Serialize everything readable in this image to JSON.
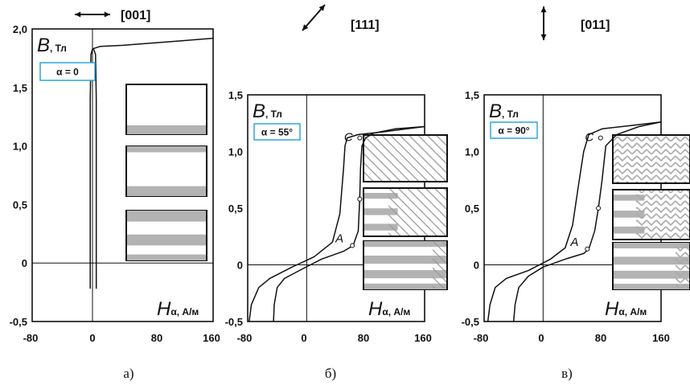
{
  "chart_data": [
    {
      "type": "line",
      "panel_label": "а)",
      "direction": "[001]",
      "arrow_icon": "horizontal-double-arrow-icon",
      "ylabel": "B",
      "yunit": ", Тл",
      "xlabel": "H",
      "xsub": "α",
      "xunit": ", А/м",
      "alpha_label": "α = 0",
      "xlim": [
        -80,
        160
      ],
      "ylim": [
        -0.5,
        2.0
      ],
      "xticks": [
        "-80",
        "0",
        "80",
        "160"
      ],
      "yticks": [
        "2,0",
        "1,5",
        "1,0",
        "0,5",
        "0",
        "-0,5"
      ],
      "domain_icons": [
        "horizontal-stripe-domain-icon",
        "horizontal-stripe-domain-icon",
        "horizontal-stripe-domain-icon"
      ],
      "series": [
        {
          "x": [
            -3,
            -3,
            -2,
            0,
            10,
            40,
            80,
            120,
            160
          ],
          "y": [
            -0.22,
            1.4,
            1.78,
            1.83,
            1.85,
            1.86,
            1.88,
            1.9,
            1.92
          ]
        },
        {
          "x": [
            5,
            5,
            4,
            2,
            0
          ],
          "y": [
            -0.22,
            1.4,
            1.78,
            1.82,
            1.83
          ]
        }
      ]
    },
    {
      "type": "line",
      "panel_label": "б)",
      "direction": "[111]",
      "arrow_icon": "diagonal-double-arrow-icon",
      "ylabel": "B",
      "yunit": ", Тл",
      "xlabel": "H",
      "xsub": "α",
      "xunit": ", А/м",
      "alpha_label": "α = 55°",
      "xlim": [
        -80,
        160
      ],
      "ylim": [
        -0.5,
        1.5
      ],
      "xticks": [
        "-80",
        "0",
        "80",
        "160"
      ],
      "yticks": [
        "1,5",
        "1,0",
        "0,5",
        "0",
        "-0,5"
      ],
      "domain_icons": [
        "diagonal-hatch-domain-icon",
        "mixed-stripe-hatch-domain-icon",
        "horizontal-stripe-domain-icon"
      ],
      "annotations": [
        {
          "text": "C",
          "x": 72,
          "y": 1.12
        },
        {
          "text": "A",
          "x": 62,
          "y": 0.17
        }
      ],
      "series": [
        {
          "x": [
            -78,
            -75,
            -65,
            -50,
            -20,
            10,
            35,
            45,
            50,
            52,
            55,
            70,
            100,
            160
          ],
          "y": [
            -0.5,
            -0.35,
            -0.2,
            -0.12,
            -0.02,
            0.07,
            0.2,
            0.45,
            0.85,
            1.05,
            1.12,
            1.15,
            1.17,
            1.22
          ]
        },
        {
          "x": [
            -45,
            -44,
            -40,
            -30,
            -10,
            20,
            50,
            63,
            70,
            72,
            73,
            75,
            80,
            90,
            120,
            160
          ],
          "y": [
            -0.5,
            -0.35,
            -0.2,
            -0.12,
            -0.05,
            0.05,
            0.12,
            0.17,
            0.3,
            0.58,
            0.85,
            1.05,
            1.12,
            1.16,
            1.2,
            1.22
          ]
        }
      ]
    },
    {
      "type": "line",
      "panel_label": "в)",
      "direction": "[011]",
      "arrow_icon": "vertical-double-arrow-icon",
      "ylabel": "B",
      "yunit": ", Тл",
      "xlabel": "H",
      "xsub": "α",
      "xunit": ", А/м",
      "alpha_label": "α = 90°",
      "xlim": [
        -80,
        160
      ],
      "ylim": [
        -0.5,
        1.5
      ],
      "xticks": [
        "-80",
        "0",
        "80",
        "160"
      ],
      "yticks": [
        "1,5",
        "1,0",
        "0,5",
        "0",
        "-0,5"
      ],
      "domain_icons": [
        "zigzag-domain-icon",
        "mixed-stripe-zigzag-domain-icon",
        "horizontal-stripe-domain-icon"
      ],
      "annotations": [
        {
          "text": "C",
          "x": 78,
          "y": 1.12
        },
        {
          "text": "A",
          "x": 60,
          "y": 0.14
        }
      ],
      "series": [
        {
          "x": [
            -75,
            -72,
            -65,
            -50,
            -20,
            10,
            30,
            40,
            48,
            55,
            62,
            80,
            120,
            160
          ],
          "y": [
            -0.5,
            -0.35,
            -0.2,
            -0.12,
            -0.05,
            0.05,
            0.15,
            0.35,
            0.7,
            1.0,
            1.15,
            1.2,
            1.23,
            1.26
          ]
        },
        {
          "x": [
            -40,
            -38,
            -33,
            -20,
            0,
            30,
            55,
            62,
            70,
            75,
            80,
            85,
            100,
            130,
            160
          ],
          "y": [
            -0.5,
            -0.35,
            -0.2,
            -0.1,
            -0.02,
            0.05,
            0.1,
            0.14,
            0.3,
            0.5,
            0.75,
            1.05,
            1.15,
            1.22,
            1.26
          ]
        }
      ]
    }
  ]
}
